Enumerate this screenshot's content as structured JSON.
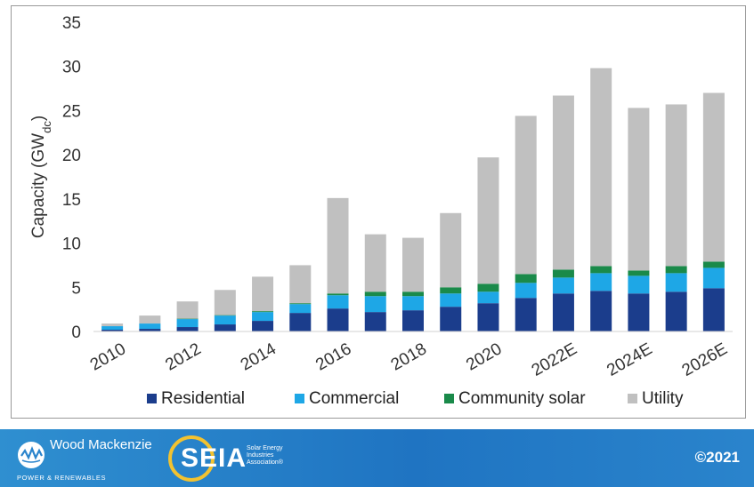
{
  "chart_data": {
    "type": "bar",
    "stacked": true,
    "ylabel": "Capacity (GW",
    "ylabel_subscript": "dc",
    "ylabel_suffix": ")",
    "xlabel": "",
    "ylim": [
      0,
      35
    ],
    "yticks": [
      0,
      5,
      10,
      15,
      20,
      25,
      30,
      35
    ],
    "categories": [
      "2010",
      "2011",
      "2012",
      "2013",
      "2014",
      "2015",
      "2016",
      "2017",
      "2018",
      "2019",
      "2020",
      "2021",
      "2022E",
      "2023E",
      "2024E",
      "2025E",
      "2026E"
    ],
    "xtick_labels": [
      "2010",
      "",
      "2012",
      "",
      "2014",
      "",
      "2016",
      "",
      "2018",
      "",
      "2020",
      "",
      "2022E",
      "",
      "2024E",
      "",
      "2026E"
    ],
    "legend_position": "bottom",
    "grid": false,
    "series": [
      {
        "name": "Residential",
        "color": "#1b3d8c",
        "values": [
          0.2,
          0.3,
          0.5,
          0.8,
          1.2,
          2.1,
          2.6,
          2.2,
          2.4,
          2.8,
          3.2,
          3.8,
          4.3,
          4.6,
          4.3,
          4.5,
          4.9
        ]
      },
      {
        "name": "Commercial",
        "color": "#1ea7e6",
        "values": [
          0.4,
          0.6,
          0.9,
          1.0,
          1.0,
          1.0,
          1.5,
          1.8,
          1.6,
          1.5,
          1.3,
          1.7,
          1.8,
          2.0,
          2.0,
          2.1,
          2.3
        ]
      },
      {
        "name": "Community solar",
        "color": "#1a8a4a",
        "values": [
          0.0,
          0.0,
          0.05,
          0.05,
          0.1,
          0.1,
          0.2,
          0.5,
          0.5,
          0.7,
          0.9,
          1.0,
          0.9,
          0.8,
          0.6,
          0.8,
          0.7
        ]
      },
      {
        "name": "Utility",
        "color": "#c0c0c0",
        "values": [
          0.3,
          0.9,
          1.95,
          2.85,
          3.9,
          4.3,
          10.8,
          6.5,
          6.1,
          8.4,
          14.3,
          17.9,
          19.7,
          22.4,
          18.4,
          18.3,
          19.1
        ]
      }
    ]
  },
  "footer": {
    "wm_name": "Wood Mackenzie",
    "wm_sub": "POWER & RENEWABLES",
    "seia_mark": "SEIA",
    "seia_sub": "Solar Energy Industries Association®",
    "copyright": "©2021"
  }
}
